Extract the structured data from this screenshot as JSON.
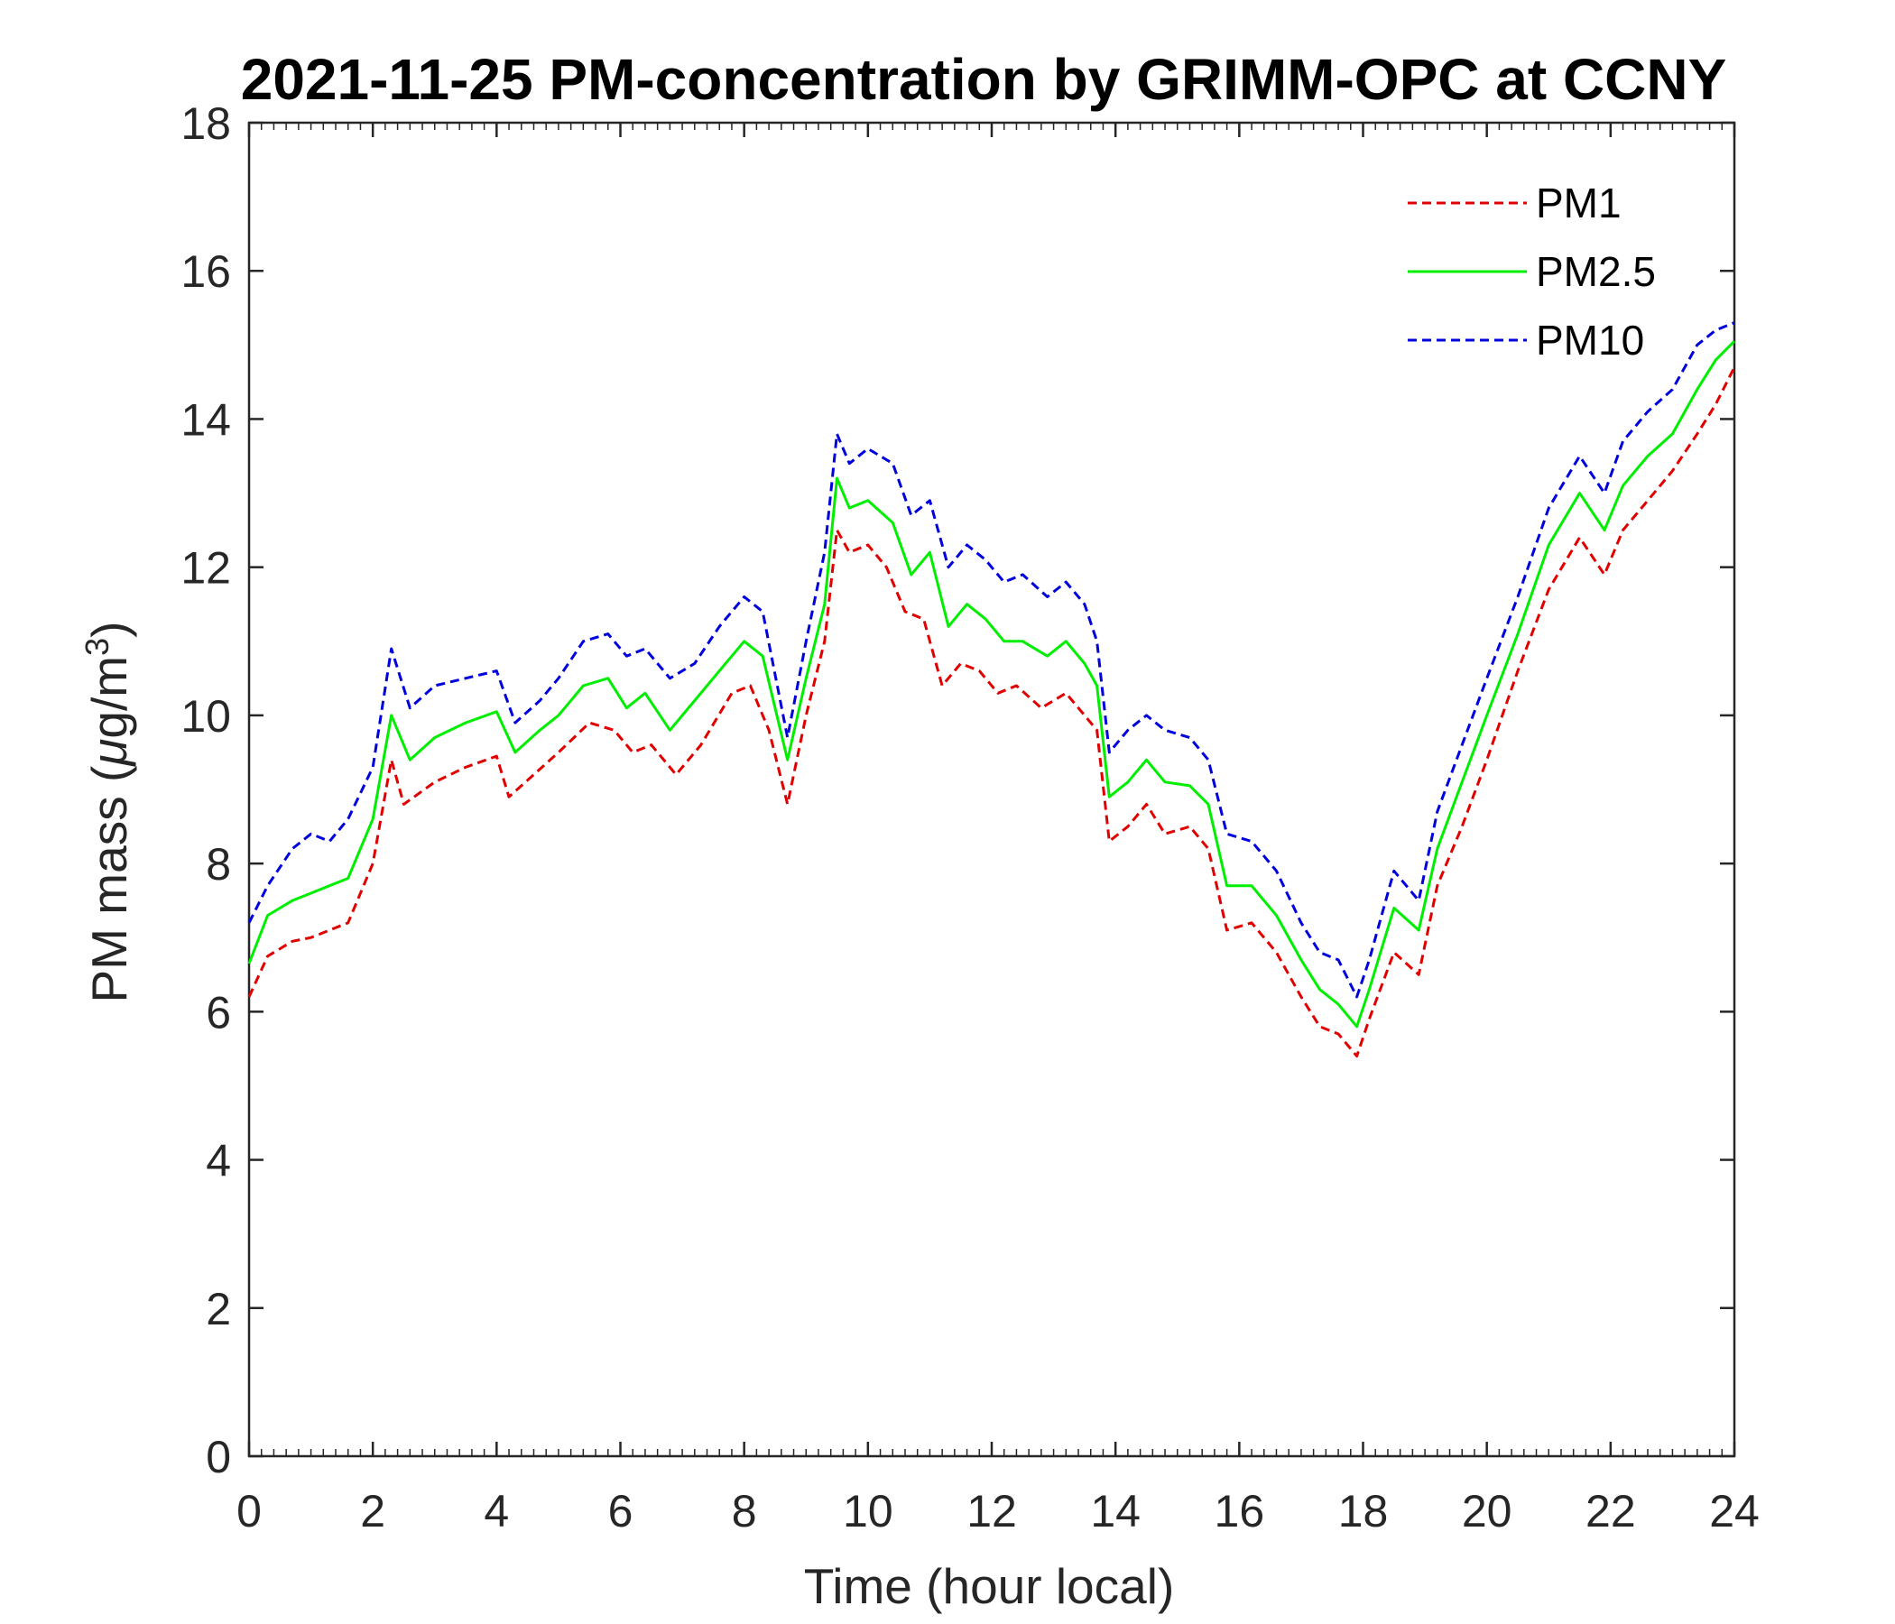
{
  "chart_data": {
    "type": "line",
    "title": "2021-11-25 PM-concentration by GRIMM-OPC at CCNY",
    "xlabel": "Time (hour local)",
    "ylabel_main": "PM mass (",
    "ylabel_mu": "μ",
    "ylabel_unit": "g/m",
    "ylabel_sup": "3",
    "ylabel_close": ")",
    "xlim": [
      0,
      24
    ],
    "ylim": [
      0,
      18
    ],
    "xticks": [
      "0",
      "2",
      "4",
      "6",
      "8",
      "10",
      "12",
      "14",
      "16",
      "18",
      "20",
      "22",
      "24"
    ],
    "yticks": [
      "0",
      "2",
      "4",
      "6",
      "8",
      "10",
      "12",
      "14",
      "16",
      "18"
    ],
    "legend_position": "top-right",
    "series": [
      {
        "name": "PM1",
        "color": "#e00000",
        "style": "dashed",
        "points": [
          [
            0,
            6.2
          ],
          [
            0.3,
            6.75
          ],
          [
            0.7,
            6.95
          ],
          [
            1.0,
            7.0
          ],
          [
            1.3,
            7.1
          ],
          [
            1.6,
            7.2
          ],
          [
            2.0,
            8.0
          ],
          [
            2.3,
            9.4
          ],
          [
            2.5,
            8.8
          ],
          [
            3.0,
            9.1
          ],
          [
            3.5,
            9.3
          ],
          [
            4.0,
            9.45
          ],
          [
            4.2,
            8.9
          ],
          [
            4.6,
            9.2
          ],
          [
            5.0,
            9.5
          ],
          [
            5.5,
            9.9
          ],
          [
            5.9,
            9.8
          ],
          [
            6.2,
            9.5
          ],
          [
            6.5,
            9.6
          ],
          [
            6.9,
            9.2
          ],
          [
            7.3,
            9.6
          ],
          [
            7.8,
            10.3
          ],
          [
            8.1,
            10.4
          ],
          [
            8.4,
            9.8
          ],
          [
            8.7,
            8.8
          ],
          [
            9.0,
            10.0
          ],
          [
            9.3,
            11.0
          ],
          [
            9.5,
            12.5
          ],
          [
            9.7,
            12.2
          ],
          [
            10.0,
            12.3
          ],
          [
            10.3,
            12.0
          ],
          [
            10.6,
            11.4
          ],
          [
            10.9,
            11.3
          ],
          [
            11.2,
            10.4
          ],
          [
            11.5,
            10.7
          ],
          [
            11.8,
            10.6
          ],
          [
            12.1,
            10.3
          ],
          [
            12.4,
            10.4
          ],
          [
            12.8,
            10.1
          ],
          [
            13.2,
            10.3
          ],
          [
            13.5,
            10.0
          ],
          [
            13.7,
            9.8
          ],
          [
            13.9,
            8.3
          ],
          [
            14.2,
            8.5
          ],
          [
            14.5,
            8.8
          ],
          [
            14.8,
            8.4
          ],
          [
            15.2,
            8.5
          ],
          [
            15.5,
            8.2
          ],
          [
            15.8,
            7.1
          ],
          [
            16.2,
            7.2
          ],
          [
            16.6,
            6.8
          ],
          [
            17.0,
            6.2
          ],
          [
            17.3,
            5.8
          ],
          [
            17.6,
            5.7
          ],
          [
            17.9,
            5.4
          ],
          [
            18.1,
            5.9
          ],
          [
            18.5,
            6.8
          ],
          [
            18.9,
            6.5
          ],
          [
            19.2,
            7.7
          ],
          [
            19.6,
            8.5
          ],
          [
            20.0,
            9.4
          ],
          [
            20.5,
            10.6
          ],
          [
            21.0,
            11.7
          ],
          [
            21.5,
            12.4
          ],
          [
            21.9,
            11.9
          ],
          [
            22.2,
            12.5
          ],
          [
            22.6,
            12.9
          ],
          [
            23.0,
            13.3
          ],
          [
            23.4,
            13.8
          ],
          [
            23.7,
            14.2
          ],
          [
            24.0,
            14.7
          ]
        ]
      },
      {
        "name": "PM2.5",
        "color": "#00ee00",
        "style": "solid",
        "points": [
          [
            0,
            6.65
          ],
          [
            0.3,
            7.3
          ],
          [
            0.7,
            7.5
          ],
          [
            1.0,
            7.6
          ],
          [
            1.3,
            7.7
          ],
          [
            1.6,
            7.8
          ],
          [
            2.0,
            8.6
          ],
          [
            2.3,
            10.0
          ],
          [
            2.6,
            9.4
          ],
          [
            3.0,
            9.7
          ],
          [
            3.5,
            9.9
          ],
          [
            4.0,
            10.05
          ],
          [
            4.3,
            9.5
          ],
          [
            4.7,
            9.8
          ],
          [
            5.0,
            10.0
          ],
          [
            5.4,
            10.4
          ],
          [
            5.8,
            10.5
          ],
          [
            6.1,
            10.1
          ],
          [
            6.4,
            10.3
          ],
          [
            6.8,
            9.8
          ],
          [
            7.2,
            10.2
          ],
          [
            7.6,
            10.6
          ],
          [
            8.0,
            11.0
          ],
          [
            8.3,
            10.8
          ],
          [
            8.7,
            9.4
          ],
          [
            9.0,
            10.5
          ],
          [
            9.3,
            11.5
          ],
          [
            9.5,
            13.2
          ],
          [
            9.7,
            12.8
          ],
          [
            10.0,
            12.9
          ],
          [
            10.4,
            12.6
          ],
          [
            10.7,
            11.9
          ],
          [
            11.0,
            12.2
          ],
          [
            11.3,
            11.2
          ],
          [
            11.6,
            11.5
          ],
          [
            11.9,
            11.3
          ],
          [
            12.2,
            11.0
          ],
          [
            12.5,
            11.0
          ],
          [
            12.9,
            10.8
          ],
          [
            13.2,
            11.0
          ],
          [
            13.5,
            10.7
          ],
          [
            13.7,
            10.4
          ],
          [
            13.9,
            8.9
          ],
          [
            14.2,
            9.1
          ],
          [
            14.5,
            9.4
          ],
          [
            14.8,
            9.1
          ],
          [
            15.2,
            9.05
          ],
          [
            15.5,
            8.8
          ],
          [
            15.8,
            7.7
          ],
          [
            16.2,
            7.7
          ],
          [
            16.6,
            7.3
          ],
          [
            17.0,
            6.7
          ],
          [
            17.3,
            6.3
          ],
          [
            17.6,
            6.1
          ],
          [
            17.9,
            5.8
          ],
          [
            18.1,
            6.3
          ],
          [
            18.5,
            7.4
          ],
          [
            18.9,
            7.1
          ],
          [
            19.2,
            8.2
          ],
          [
            19.6,
            9.1
          ],
          [
            20.0,
            10.0
          ],
          [
            20.5,
            11.1
          ],
          [
            21.0,
            12.3
          ],
          [
            21.5,
            13.0
          ],
          [
            21.9,
            12.5
          ],
          [
            22.2,
            13.1
          ],
          [
            22.6,
            13.5
          ],
          [
            23.0,
            13.8
          ],
          [
            23.4,
            14.4
          ],
          [
            23.7,
            14.8
          ],
          [
            24.0,
            15.05
          ]
        ]
      },
      {
        "name": "PM10",
        "color": "#0000dd",
        "style": "dashed",
        "points": [
          [
            0,
            7.2
          ],
          [
            0.3,
            7.7
          ],
          [
            0.7,
            8.2
          ],
          [
            1.0,
            8.4
          ],
          [
            1.3,
            8.3
          ],
          [
            1.6,
            8.6
          ],
          [
            2.0,
            9.3
          ],
          [
            2.3,
            10.9
          ],
          [
            2.6,
            10.1
          ],
          [
            3.0,
            10.4
          ],
          [
            3.5,
            10.5
          ],
          [
            4.0,
            10.6
          ],
          [
            4.3,
            9.9
          ],
          [
            4.7,
            10.2
          ],
          [
            5.0,
            10.5
          ],
          [
            5.4,
            11.0
          ],
          [
            5.8,
            11.1
          ],
          [
            6.1,
            10.8
          ],
          [
            6.4,
            10.9
          ],
          [
            6.8,
            10.5
          ],
          [
            7.2,
            10.7
          ],
          [
            7.6,
            11.2
          ],
          [
            8.0,
            11.6
          ],
          [
            8.3,
            11.4
          ],
          [
            8.7,
            9.7
          ],
          [
            9.0,
            11.0
          ],
          [
            9.3,
            12.2
          ],
          [
            9.5,
            13.8
          ],
          [
            9.7,
            13.4
          ],
          [
            10.0,
            13.6
          ],
          [
            10.4,
            13.4
          ],
          [
            10.7,
            12.7
          ],
          [
            11.0,
            12.9
          ],
          [
            11.3,
            12.0
          ],
          [
            11.6,
            12.3
          ],
          [
            11.9,
            12.1
          ],
          [
            12.2,
            11.8
          ],
          [
            12.5,
            11.9
          ],
          [
            12.9,
            11.6
          ],
          [
            13.2,
            11.8
          ],
          [
            13.5,
            11.5
          ],
          [
            13.7,
            11.0
          ],
          [
            13.9,
            9.5
          ],
          [
            14.2,
            9.8
          ],
          [
            14.5,
            10.0
          ],
          [
            14.8,
            9.8
          ],
          [
            15.2,
            9.7
          ],
          [
            15.5,
            9.4
          ],
          [
            15.8,
            8.4
          ],
          [
            16.2,
            8.3
          ],
          [
            16.6,
            7.9
          ],
          [
            17.0,
            7.2
          ],
          [
            17.3,
            6.8
          ],
          [
            17.6,
            6.7
          ],
          [
            17.9,
            6.2
          ],
          [
            18.1,
            6.7
          ],
          [
            18.5,
            7.9
          ],
          [
            18.9,
            7.5
          ],
          [
            19.2,
            8.7
          ],
          [
            19.6,
            9.6
          ],
          [
            20.0,
            10.5
          ],
          [
            20.5,
            11.6
          ],
          [
            21.0,
            12.8
          ],
          [
            21.5,
            13.5
          ],
          [
            21.9,
            13.0
          ],
          [
            22.2,
            13.7
          ],
          [
            22.6,
            14.1
          ],
          [
            23.0,
            14.4
          ],
          [
            23.4,
            15.0
          ],
          [
            23.7,
            15.2
          ],
          [
            24.0,
            15.3
          ]
        ]
      }
    ]
  }
}
